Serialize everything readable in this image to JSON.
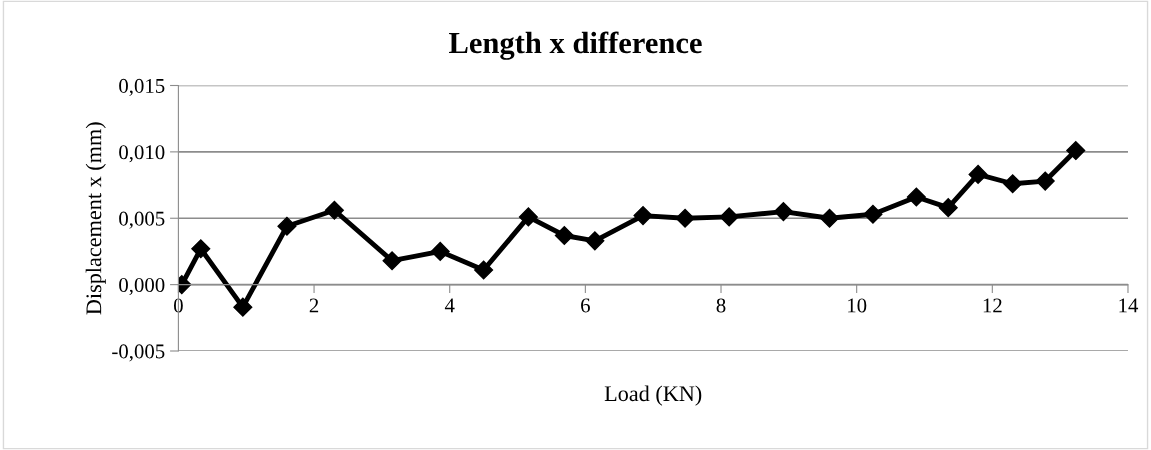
{
  "chart_data": {
    "type": "line",
    "title": "Length x difference",
    "xlabel": "Load (KN)",
    "ylabel": "Displacement x (mm)",
    "x": [
      0.05,
      0.33,
      0.95,
      1.6,
      2.3,
      3.15,
      3.86,
      4.5,
      5.16,
      5.69,
      6.14,
      6.85,
      7.47,
      8.12,
      8.92,
      9.6,
      10.24,
      10.88,
      11.35,
      11.79,
      12.3,
      12.78,
      13.23
    ],
    "series": [
      {
        "color": "#000000",
        "values": [
          0.0,
          0.0027,
          -0.0017,
          0.0044,
          0.0056,
          0.0018,
          0.0025,
          0.0011,
          0.0051,
          0.0037,
          0.0033,
          0.0052,
          0.005,
          0.0051,
          0.0055,
          0.005,
          0.0053,
          0.0066,
          0.0058,
          0.0083,
          0.0076,
          0.0078,
          0.0101
        ]
      }
    ],
    "xlim": [
      0,
      14
    ],
    "xticks": [
      0,
      2,
      4,
      6,
      8,
      10,
      12,
      14
    ],
    "ylim": [
      -0.005,
      0.015
    ],
    "yticks": [
      {
        "value": -0.005,
        "label": "-0,005"
      },
      {
        "value": 0.0,
        "label": "0,000"
      },
      {
        "value": 0.005,
        "label": "0,005"
      },
      {
        "value": 0.01,
        "label": "0,010"
      },
      {
        "value": 0.015,
        "label": "0,015"
      }
    ],
    "grid": "y",
    "marker": "diamond",
    "line_style": "solid",
    "legend": false
  }
}
